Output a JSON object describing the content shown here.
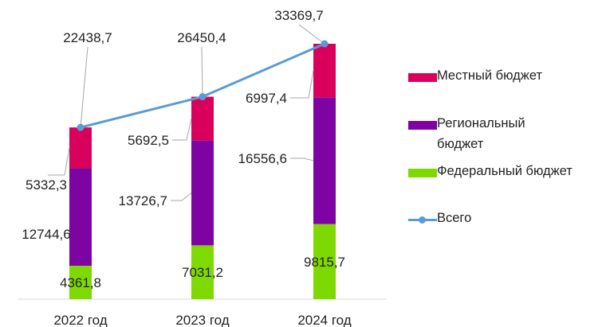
{
  "chart_data": {
    "type": "bar",
    "stacked": true,
    "categories": [
      "2022 год",
      "2023 год",
      "2024 год"
    ],
    "series": [
      {
        "name": "Федеральный бюджет",
        "color": "#7ed900",
        "values": [
          4361.8,
          7031.2,
          9815.7
        ],
        "labels": [
          "4361,8",
          "7031,2",
          "9815,7"
        ]
      },
      {
        "name": "Региональный бюджет",
        "color": "#7d04a3",
        "values": [
          12744.6,
          13726.7,
          16556.6
        ],
        "labels": [
          "12744,6",
          "13726,7",
          "16556,6"
        ]
      },
      {
        "name": "Местный бюджет",
        "color": "#d9005b",
        "values": [
          5332.3,
          5692.5,
          6997.4
        ],
        "labels": [
          "5332,3",
          "5692,5",
          "6997,4"
        ]
      }
    ],
    "total": {
      "name": "Всего",
      "type": "line",
      "color": "#5b9bd5",
      "values": [
        22438.7,
        26450.4,
        33369.7
      ],
      "labels": [
        "22438,7",
        "26450,4",
        "33369,7"
      ]
    },
    "ylim": [
      0,
      35000
    ],
    "grid": false,
    "legend": "right"
  }
}
